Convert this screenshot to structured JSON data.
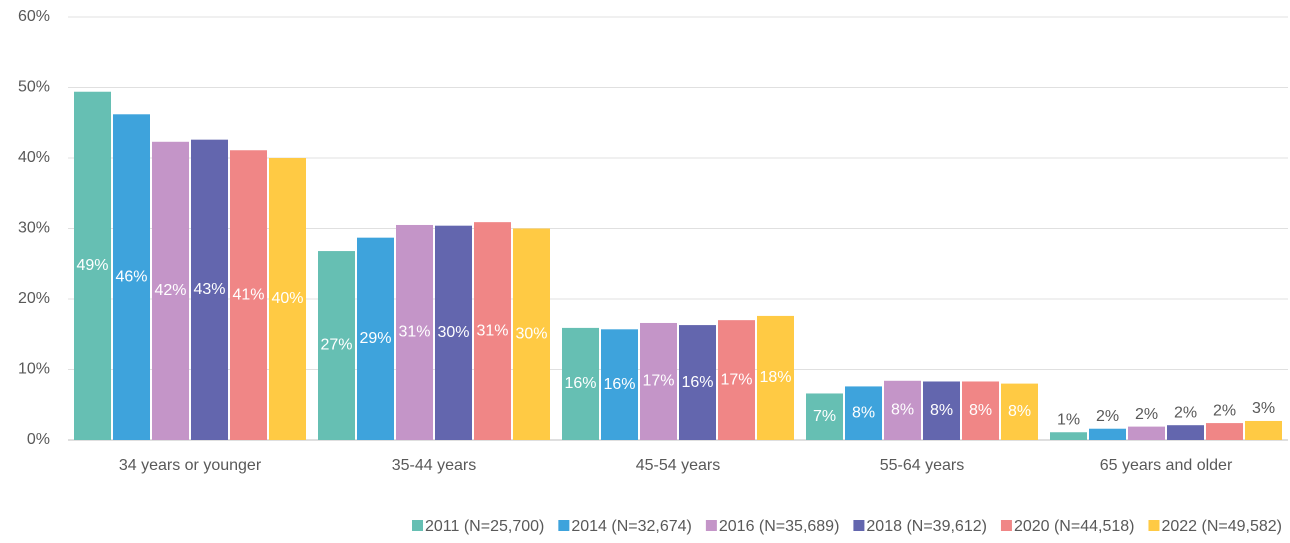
{
  "chart_data": {
    "type": "bar",
    "categories": [
      "34 years or younger",
      "35-44 years",
      "45-54 years",
      "55-64 years",
      "65 years and older"
    ],
    "series": [
      {
        "name": "2011 (N=25,700)",
        "color": "#66bfb3",
        "values": [
          49.4,
          26.8,
          15.9,
          6.6,
          1.1
        ],
        "value_labels": [
          "49%",
          "27%",
          "16%",
          "7%",
          "1%"
        ]
      },
      {
        "name": "2014 (N=32,674)",
        "color": "#3ea3dc",
        "values": [
          46.2,
          28.7,
          15.7,
          7.6,
          1.6
        ],
        "value_labels": [
          "46%",
          "29%",
          "16%",
          "8%",
          "2%"
        ]
      },
      {
        "name": "2016 (N=35,689)",
        "color": "#c495c8",
        "values": [
          42.3,
          30.5,
          16.6,
          8.4,
          1.9
        ],
        "value_labels": [
          "42%",
          "31%",
          "17%",
          "8%",
          "2%"
        ]
      },
      {
        "name": "2018 (N=39,612)",
        "color": "#6366ae",
        "values": [
          42.6,
          30.4,
          16.3,
          8.3,
          2.1
        ],
        "value_labels": [
          "43%",
          "30%",
          "16%",
          "8%",
          "2%"
        ]
      },
      {
        "name": "2020 (N=44,518)",
        "color": "#f08686",
        "values": [
          41.1,
          30.9,
          17.0,
          8.3,
          2.4
        ],
        "value_labels": [
          "41%",
          "31%",
          "17%",
          "8%",
          "2%"
        ]
      },
      {
        "name": "2022 (N=49,582)",
        "color": "#ffca44",
        "values": [
          40.0,
          30.0,
          17.6,
          8.0,
          2.7
        ],
        "value_labels": [
          "40%",
          "30%",
          "18%",
          "8%",
          "3%"
        ]
      }
    ],
    "ylim": [
      0,
      60
    ],
    "yticks": [
      {
        "value": 0,
        "label": "0%"
      },
      {
        "value": 10,
        "label": "10%"
      },
      {
        "value": 20,
        "label": "20%"
      },
      {
        "value": 30,
        "label": "30%"
      },
      {
        "value": 40,
        "label": "40%"
      },
      {
        "value": 50,
        "label": "50%"
      },
      {
        "value": 60,
        "label": "60%"
      }
    ],
    "grid": true,
    "legend": "bottom"
  }
}
